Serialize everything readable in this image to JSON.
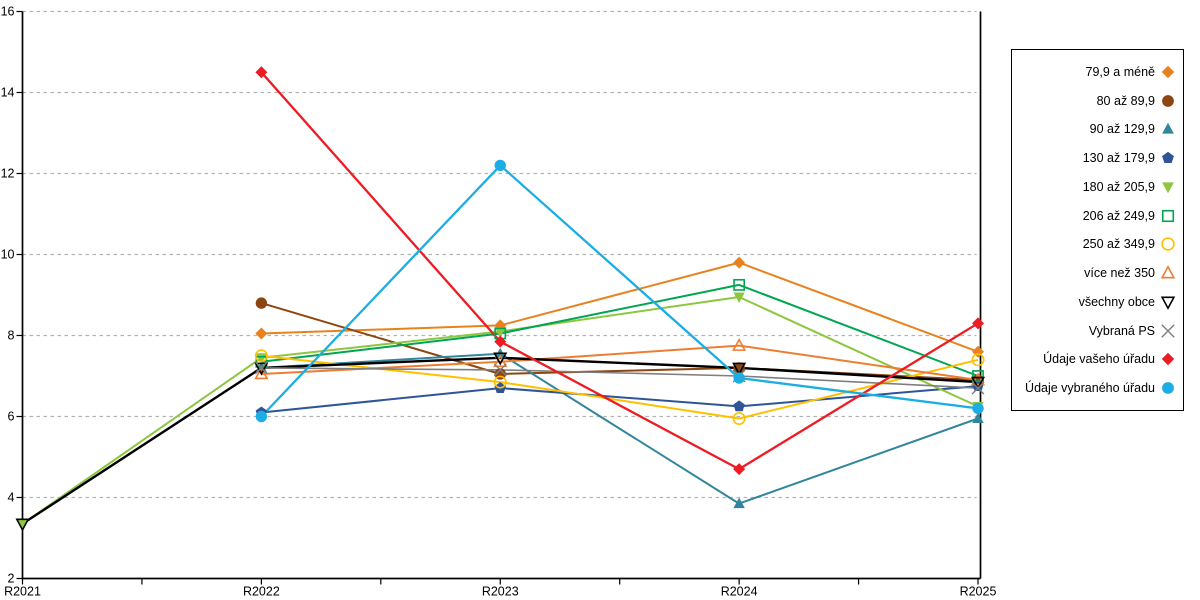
{
  "chart_data": {
    "type": "line",
    "title": "",
    "xlabel": "",
    "ylabel": "",
    "categories": [
      "R2021",
      "R2022",
      "R2023",
      "R2024",
      "R2025"
    ],
    "ylim": [
      2,
      16
    ],
    "y_ticks": [
      2,
      4,
      6,
      8,
      10,
      12,
      14,
      16
    ],
    "grid": "horizontal-dashed",
    "grid_color": "#b3b3b3",
    "axis_color": "#000000",
    "legend_position": "right-box",
    "series": [
      {
        "name": "79,9 a méně",
        "color": "#e8821e",
        "marker": "diamond",
        "filled": true,
        "line_width": 2,
        "values": [
          null,
          8.05,
          8.25,
          9.8,
          7.6
        ]
      },
      {
        "name": "80 až 89,9",
        "color": "#8c4611",
        "marker": "circle",
        "filled": true,
        "line_width": 2,
        "values": [
          null,
          8.8,
          7.05,
          7.2,
          6.9
        ]
      },
      {
        "name": "90 až 129,9",
        "color": "#31859c",
        "marker": "triangle-up",
        "filled": true,
        "line_width": 2,
        "values": [
          null,
          7.2,
          7.55,
          3.85,
          5.95
        ]
      },
      {
        "name": "130 až 179,9",
        "color": "#2f5597",
        "marker": "pentagon",
        "filled": true,
        "line_width": 2,
        "values": [
          null,
          6.1,
          6.7,
          6.25,
          6.75
        ]
      },
      {
        "name": "180 až 205,9",
        "color": "#8dc63f",
        "marker": "triangle-down",
        "filled": true,
        "line_width": 2,
        "values": [
          3.35,
          7.45,
          8.1,
          8.95,
          6.25
        ]
      },
      {
        "name": "206 až 249,9",
        "color": "#00a651",
        "marker": "square",
        "filled": false,
        "line_width": 2,
        "values": [
          null,
          7.35,
          8.05,
          9.25,
          7.0
        ]
      },
      {
        "name": "250 až 349,9",
        "color": "#ffc000",
        "marker": "circle",
        "filled": false,
        "line_width": 2,
        "values": [
          null,
          7.5,
          6.85,
          5.95,
          7.4
        ]
      },
      {
        "name": "více než 350",
        "color": "#ed7d31",
        "marker": "triangle-up",
        "filled": false,
        "line_width": 2,
        "values": [
          null,
          7.05,
          7.35,
          7.75,
          6.9
        ]
      },
      {
        "name": "všechny obce",
        "color": "#000000",
        "marker": "triangle-down",
        "filled": false,
        "line_width": 2.4,
        "values": [
          3.35,
          7.2,
          7.45,
          7.2,
          6.85
        ]
      },
      {
        "name": "Vybraná PS",
        "color": "#7f7f7f",
        "marker": "x",
        "filled": false,
        "line_width": 1.6,
        "values": [
          null,
          7.2,
          7.15,
          7.0,
          6.7
        ]
      },
      {
        "name": "Údaje vašeho úřadu",
        "color": "#ed1c24",
        "marker": "diamond",
        "filled": true,
        "line_width": 2.3,
        "values": [
          null,
          14.5,
          7.85,
          4.7,
          8.3
        ]
      },
      {
        "name": "Údaje vybraného úřadu",
        "color": "#1cade4",
        "marker": "circle",
        "filled": true,
        "line_width": 2.3,
        "values": [
          null,
          6.0,
          12.2,
          6.95,
          6.2
        ]
      }
    ]
  }
}
